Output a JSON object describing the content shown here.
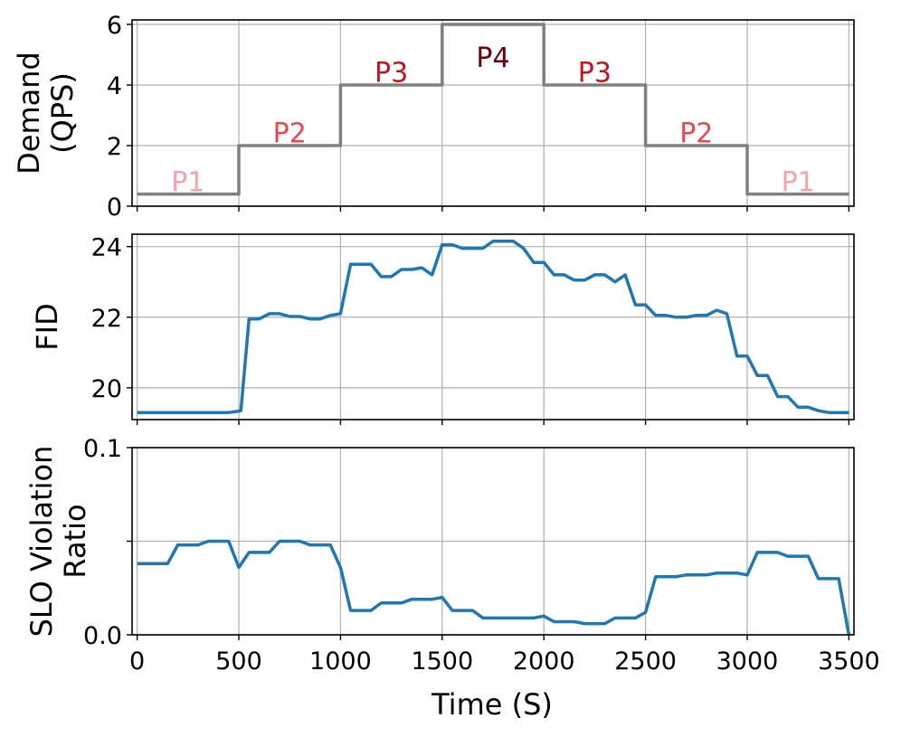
{
  "chart_data": [
    {
      "type": "line",
      "panel": "demand",
      "ylabel_lines": [
        "Demand",
        "(QPS)"
      ],
      "ylim": [
        0,
        6.15
      ],
      "yticks": [
        0,
        2,
        4,
        6
      ],
      "ytick_labels": [
        "0",
        "2",
        "4",
        "6"
      ],
      "xlim": [
        -25,
        3525
      ],
      "grid": true,
      "line_color": "#808080",
      "series": [
        {
          "x": [
            0,
            500,
            500,
            1000,
            1000,
            1500,
            1500,
            2000,
            2000,
            2500,
            2500,
            3000,
            3000,
            3500
          ],
          "y": [
            0.4,
            0.4,
            2,
            2,
            4,
            4,
            6,
            6,
            4,
            4,
            2,
            2,
            0.4,
            0.4
          ]
        }
      ],
      "annotations": [
        {
          "text": "P1",
          "x": 250,
          "y": 0.5,
          "color": "#f4a3a8"
        },
        {
          "text": "P2",
          "x": 750,
          "y": 2.1,
          "color": "#e8474c"
        },
        {
          "text": "P3",
          "x": 1250,
          "y": 4.1,
          "color": "#c4151c"
        },
        {
          "text": "P4",
          "x": 1750,
          "y": 4.6,
          "color": "#6b0008"
        },
        {
          "text": "P3",
          "x": 2250,
          "y": 4.1,
          "color": "#c4151c"
        },
        {
          "text": "P2",
          "x": 2750,
          "y": 2.1,
          "color": "#e8474c"
        },
        {
          "text": "P1",
          "x": 3250,
          "y": 0.5,
          "color": "#f4a3a8"
        }
      ]
    },
    {
      "type": "line",
      "panel": "fid",
      "ylabel_lines": [
        "FID"
      ],
      "ylim": [
        19.1,
        24.35
      ],
      "yticks": [
        20,
        22,
        24
      ],
      "ytick_labels": [
        "20",
        "22",
        "24"
      ],
      "xlim": [
        -25,
        3525
      ],
      "grid": true,
      "line_color": "#1f77b4",
      "series": [
        {
          "x": [
            0,
            450,
            490,
            510,
            550,
            600,
            650,
            700,
            750,
            800,
            850,
            900,
            950,
            1000,
            1050,
            1100,
            1150,
            1200,
            1250,
            1300,
            1350,
            1400,
            1450,
            1500,
            1550,
            1600,
            1650,
            1700,
            1750,
            1800,
            1850,
            1900,
            1950,
            2000,
            2050,
            2100,
            2150,
            2200,
            2250,
            2300,
            2350,
            2400,
            2450,
            2500,
            2550,
            2600,
            2650,
            2700,
            2750,
            2800,
            2850,
            2900,
            2950,
            3000,
            3050,
            3100,
            3150,
            3200,
            3250,
            3300,
            3350,
            3400,
            3450,
            3500
          ],
          "y": [
            19.3,
            19.3,
            19.33,
            19.35,
            21.95,
            21.95,
            22.1,
            22.1,
            22.02,
            22.02,
            21.95,
            21.95,
            22.05,
            22.1,
            23.5,
            23.5,
            23.5,
            23.15,
            23.15,
            23.35,
            23.35,
            23.4,
            23.2,
            24.05,
            24.05,
            23.95,
            23.95,
            23.95,
            24.15,
            24.15,
            24.15,
            23.95,
            23.55,
            23.55,
            23.2,
            23.2,
            23.05,
            23.05,
            23.2,
            23.2,
            23.0,
            23.2,
            22.35,
            22.35,
            22.05,
            22.05,
            22.0,
            22.0,
            22.05,
            22.05,
            22.2,
            22.1,
            20.9,
            20.9,
            20.35,
            20.35,
            19.75,
            19.75,
            19.45,
            19.45,
            19.35,
            19.3,
            19.3,
            19.3
          ]
        }
      ]
    },
    {
      "type": "line",
      "panel": "slo",
      "ylabel_lines": [
        "SLO Violation",
        "Ratio"
      ],
      "xlabel": "Time (S)",
      "ylim": [
        0,
        0.1
      ],
      "yticks": [
        0,
        0.05,
        0.1
      ],
      "ytick_labels": [
        "0.0",
        "",
        "0.1"
      ],
      "xlim": [
        -25,
        3525
      ],
      "xticks": [
        0,
        500,
        1000,
        1500,
        2000,
        2500,
        3000,
        3500
      ],
      "xtick_labels": [
        "0",
        "500",
        "1000",
        "1500",
        "2000",
        "2500",
        "3000",
        "3500"
      ],
      "grid": true,
      "line_color": "#1f77b4",
      "series": [
        {
          "x": [
            0,
            150,
            200,
            300,
            350,
            450,
            500,
            550,
            650,
            700,
            800,
            850,
            950,
            1000,
            1050,
            1150,
            1200,
            1300,
            1350,
            1450,
            1500,
            1550,
            1650,
            1700,
            1750,
            1850,
            1900,
            1950,
            2000,
            2050,
            2150,
            2200,
            2300,
            2350,
            2450,
            2500,
            2550,
            2650,
            2700,
            2800,
            2850,
            2950,
            3000,
            3050,
            3150,
            3200,
            3300,
            3350,
            3450,
            3500
          ],
          "y": [
            0.038,
            0.038,
            0.048,
            0.048,
            0.05,
            0.05,
            0.036,
            0.044,
            0.044,
            0.05,
            0.05,
            0.048,
            0.048,
            0.036,
            0.013,
            0.013,
            0.017,
            0.017,
            0.019,
            0.019,
            0.02,
            0.013,
            0.013,
            0.009,
            0.009,
            0.009,
            0.009,
            0.009,
            0.01,
            0.007,
            0.007,
            0.006,
            0.006,
            0.009,
            0.009,
            0.012,
            0.031,
            0.031,
            0.032,
            0.032,
            0.033,
            0.033,
            0.032,
            0.044,
            0.044,
            0.042,
            0.042,
            0.03,
            0.03,
            0.0
          ]
        }
      ]
    }
  ]
}
